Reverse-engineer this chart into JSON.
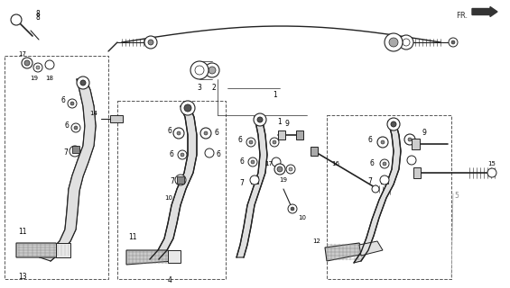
{
  "bg_color": "#ffffff",
  "line_color": "#222222",
  "label_color": "#000000",
  "fig_width": 5.65,
  "fig_height": 3.2,
  "dpi": 100
}
